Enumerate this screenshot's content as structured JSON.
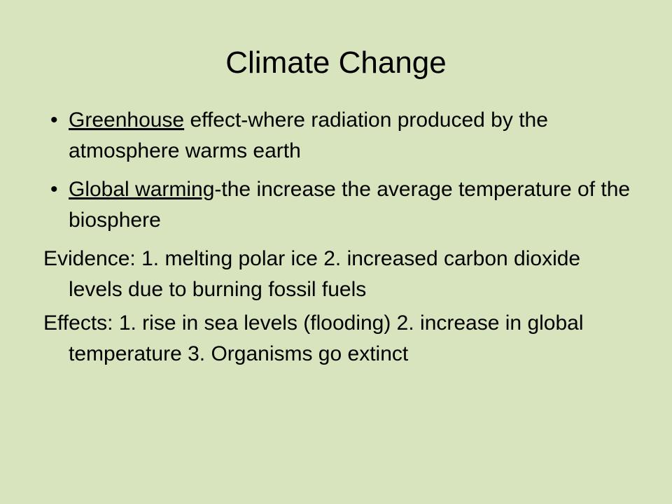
{
  "title": "Climate Change",
  "bullets": [
    {
      "term": "Greenhouse",
      "text": " effect-where radiation produced by the atmosphere warms earth"
    },
    {
      "term": "Global warming",
      "text": "-the increase the average temperature of the biosphere"
    }
  ],
  "paragraphs": [
    "Evidence: 1. melting polar ice 2. increased carbon dioxide levels due to burning fossil fuels",
    "Effects: 1. rise in sea levels (flooding) 2. increase in global temperature 3. Organisms go extinct"
  ]
}
